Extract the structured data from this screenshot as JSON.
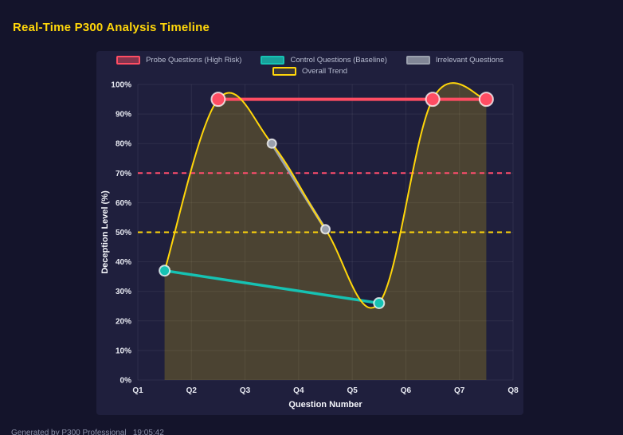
{
  "header": {
    "title": "Real-Time P300 Analysis Timeline"
  },
  "footer": {
    "note": "Generated by P300 Professional   19:05:42"
  },
  "colors": {
    "page_bg": "#14142b",
    "panel_bg": "#1f1f3d",
    "title_text": "#ffd60a",
    "legend_text": "#b9bed2",
    "tick_text": "#e8eaf2",
    "axis_title": "#f4f5fa",
    "footer_text": "#8b90a8"
  },
  "chart_data": {
    "type": "line",
    "title": "Real-Time P300 Analysis Timeline",
    "xlabel": "Question Number",
    "ylabel": "Deception Level (%)",
    "x_ticks": [
      "Q1",
      "Q2",
      "Q3",
      "Q4",
      "Q5",
      "Q6",
      "Q7",
      "Q8"
    ],
    "x_range": [
      1,
      8
    ],
    "y_ticks": [
      "0%",
      "10%",
      "20%",
      "30%",
      "40%",
      "50%",
      "60%",
      "70%",
      "80%",
      "90%",
      "100%"
    ],
    "ylim": [
      0,
      100
    ],
    "grid": true,
    "grid_color": "rgba(255,255,255,0.07)",
    "legend_position": "top",
    "series": [
      {
        "name": "Probe Questions (High Risk)",
        "color": "#ff4d63",
        "legend_fill": "rgba(255,77,99,0.45)",
        "points": [
          [
            2.5,
            95
          ],
          [
            6.5,
            95
          ],
          [
            7.5,
            95
          ]
        ],
        "line_width": 4,
        "marker_r": 8.5
      },
      {
        "name": "Control Questions (Baseline)",
        "color": "#16c2b3",
        "legend_fill": "rgba(22,194,179,0.8)",
        "points": [
          [
            1.5,
            37
          ],
          [
            5.5,
            26
          ]
        ],
        "line_width": 3.5,
        "marker_r": 6.5
      },
      {
        "name": "Irrelevant Questions",
        "color": "#9aa0ad",
        "legend_fill": "rgba(154,160,173,0.8)",
        "points": [
          [
            3.5,
            80
          ],
          [
            4.5,
            51
          ]
        ],
        "line_width": 3.5,
        "marker_r": 5.5
      },
      {
        "name": "Overall Trend",
        "color": "#ffd60a",
        "legend_fill": "rgba(255,214,10,0.12)",
        "points": [
          [
            1.5,
            37
          ],
          [
            2.5,
            95
          ],
          [
            3.5,
            80
          ],
          [
            4.5,
            51
          ],
          [
            5.5,
            26
          ],
          [
            6.5,
            95
          ],
          [
            7.5,
            95
          ]
        ],
        "line_width": 2,
        "marker_r": 0,
        "smooth": true,
        "area_fill": "rgba(255,214,10,0.2)"
      }
    ],
    "thresholds": [
      {
        "y": 70,
        "color": "#ff4d6d",
        "dash": "6 5"
      },
      {
        "y": 50,
        "color": "#ffd60a",
        "dash": "6 5"
      }
    ]
  }
}
